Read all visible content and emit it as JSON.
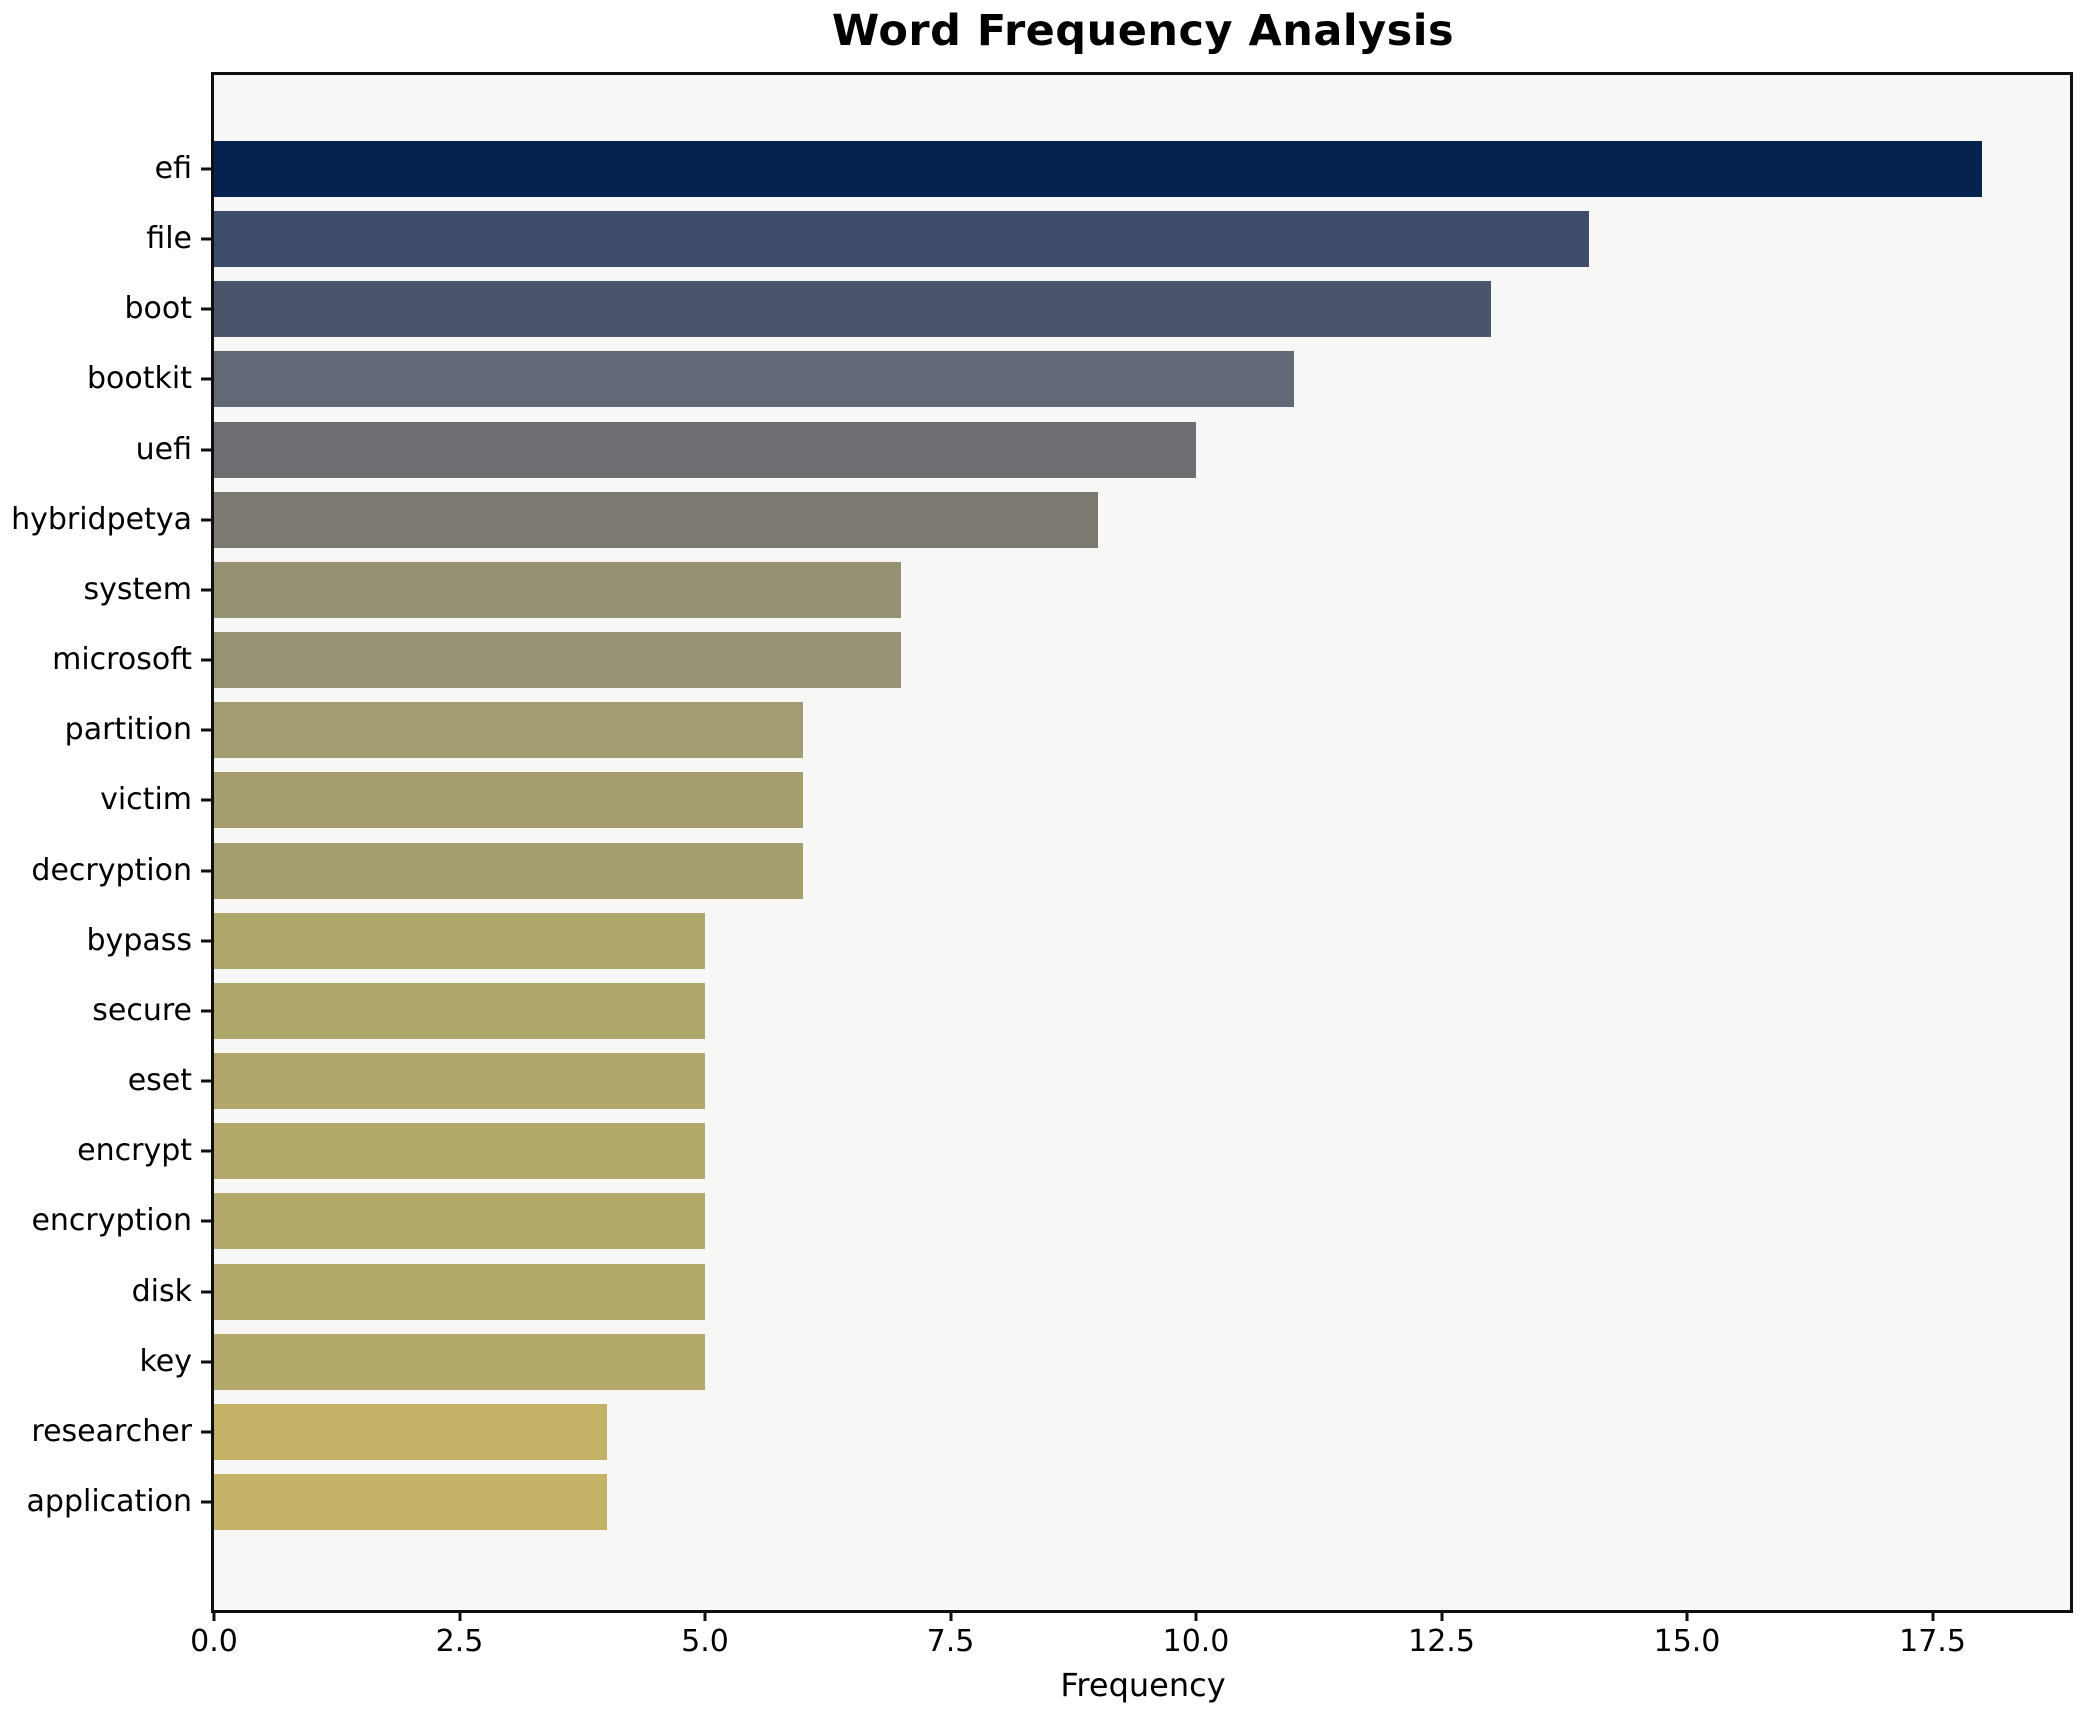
{
  "title": "Word Frequency Analysis",
  "xlabel": "Frequency",
  "chart_data": {
    "type": "bar",
    "orientation": "horizontal",
    "title": "Word Frequency Analysis",
    "xlabel": "Frequency",
    "categories": [
      "efi",
      "file",
      "boot",
      "bootkit",
      "uefi",
      "hybridpetya",
      "system",
      "microsoft",
      "partition",
      "victim",
      "decryption",
      "bypass",
      "secure",
      "eset",
      "encrypt",
      "encryption",
      "disk",
      "key",
      "researcher",
      "application"
    ],
    "values": [
      18,
      14,
      13,
      11,
      10,
      9,
      7,
      7,
      6,
      6,
      6,
      5,
      5,
      5,
      5,
      5,
      5,
      5,
      4,
      4
    ],
    "colors": [
      "#04234f",
      "#3d4c6b",
      "#4a556c",
      "#636876",
      "#6c6e71",
      "#7b7970",
      "#959173",
      "#969274",
      "#a39c70",
      "#a49d70",
      "#a49d6f",
      "#b0a76b",
      "#b0a76b",
      "#b1a76a",
      "#b1a86a",
      "#b1a86a",
      "#b1a86a",
      "#b2a869",
      "#c3b266",
      "#c4b366"
    ],
    "xlim": [
      0,
      18.9
    ],
    "xticks": [
      0,
      2.5,
      5,
      7.5,
      10,
      12.5,
      15,
      17.5
    ],
    "xtick_labels": [
      "0.0",
      "2.5",
      "5.0",
      "7.5",
      "10.0",
      "12.5",
      "15.0",
      "17.5"
    ],
    "grid": false,
    "legend_position": "none",
    "plot_background": "#f7f7f5",
    "figure_background": "#ffffff"
  }
}
